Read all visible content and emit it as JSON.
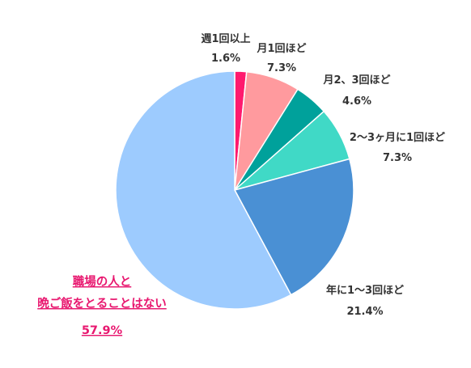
{
  "chart_data": {
    "type": "pie",
    "title": "",
    "unit": "%",
    "slices": [
      {
        "label": "週1回以上",
        "value": 1.6,
        "value_label": "1.6%",
        "color": "#ff1a6e"
      },
      {
        "label": "月1回ほど",
        "value": 7.3,
        "value_label": "7.3%",
        "color": "#ff9a9e"
      },
      {
        "label": "月2、3回ほど",
        "value": 4.6,
        "value_label": "4.6%",
        "color": "#00a19b"
      },
      {
        "label": "2〜3ヶ月に1回ほど",
        "value": 7.3,
        "value_label": "7.3%",
        "color": "#40d9c6"
      },
      {
        "label": "年に1〜3回ほど",
        "value": 21.4,
        "value_label": "21.4%",
        "color": "#4a90d4"
      },
      {
        "label": "職場の人と晩ご飯をとることはない",
        "label_lines": [
          "職場の人と",
          "晩ご飯をとることはない"
        ],
        "value": 57.9,
        "value_label": "57.9%",
        "color": "#9dcbfe",
        "highlight": true,
        "highlight_color": "#e8176f"
      }
    ]
  }
}
